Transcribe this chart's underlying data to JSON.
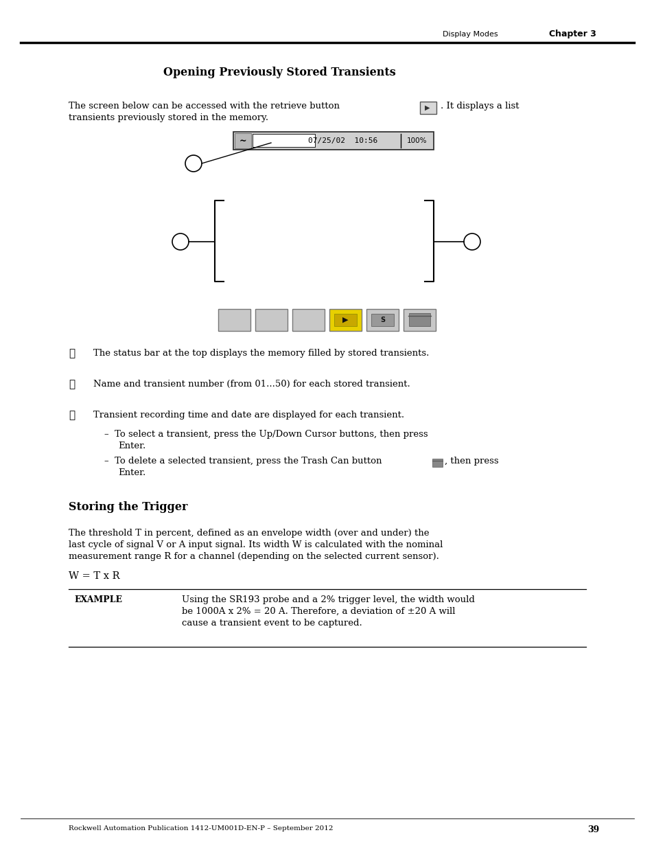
{
  "page_bg": "#ffffff",
  "header_text_left": "Display Modes",
  "header_text_right": "Chapter 3",
  "section1_title": "Opening Previously Stored Transients",
  "status_bar_text": "07/25/02  10:56",
  "status_bar_pct": "100%",
  "section2_title": "Storing the Trigger",
  "section2_para1": "The threshold T in percent, defined as an envelope width (over and under) the",
  "section2_para2": "last cycle of signal V or A input signal. Its width W is calculated with the nominal",
  "section2_para3": "measurement range R for a channel (depending on the selected current sensor).",
  "formula": "W = T x R",
  "example_label": "EXAMPLE",
  "example_line1": "Using the SR193 probe and a 2% trigger level, the width would",
  "example_line2": "be 1000A x 2% = 20 A. Therefore, a deviation of ±20 A will",
  "example_line3": "cause a transient event to be captured.",
  "footer_text": "Rockwell Automation Publication 1412-UM001D-EN-P – September 2012",
  "page_number": "39",
  "gray_btn": "#c8c8c8",
  "yellow_btn": "#e8d000",
  "para1_line1": "The screen below can be accessed with the retrieve button",
  "para1_end": ". It displays a list",
  "para1_line2": "transients previously stored in the memory.",
  "bullet1_sym": "①",
  "bullet1_text": "The status bar at the top displays the memory filled by stored transients.",
  "bullet2_sym": "②",
  "bullet2_text": "Name and transient number (from 01...50) for each stored transient.",
  "bullet3_sym": "③",
  "bullet3_text": "Transient recording time and date are displayed for each transient.",
  "sub1_dash": "–",
  "sub1_text": "To select a transient, press the Up/Down Cursor buttons, then press",
  "sub1_cont": "Enter.",
  "sub2_dash": "–",
  "sub2_text1": "To delete a selected transient, press the Trash Can button",
  "sub2_text2": ", then press",
  "sub2_cont": "Enter."
}
